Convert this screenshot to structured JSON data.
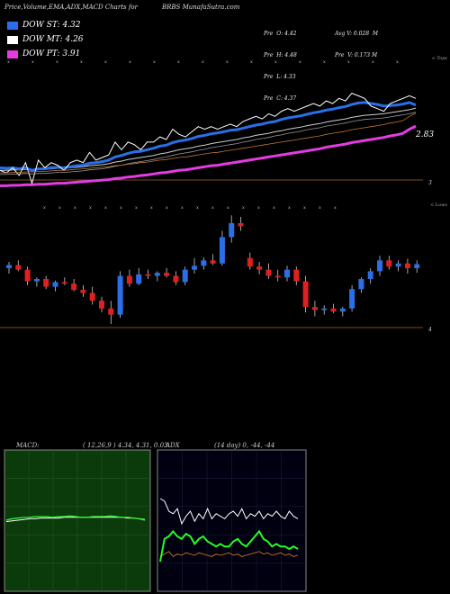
{
  "header": {
    "left_title": "Price,Volume,EMA,ADX,MACD Charts for",
    "symbol": "BRBS",
    "site": "MunafaSutra.com"
  },
  "legend": [
    {
      "label": "DOW ST: 4.32",
      "color": "#2a6fe8"
    },
    {
      "label": "DOW MT: 4.26",
      "color": "#ffffff"
    },
    {
      "label": "DOW PT: 3.91",
      "color": "#e33ce3"
    }
  ],
  "stats_left": [
    "Pre  O: 4.42",
    "Pre  H: 4.48",
    "Pre  L: 4.33",
    "Pre  C: 4.37"
  ],
  "stats_right": [
    "Avg V: 0.028  M",
    "Pre  V: 0.173 M"
  ],
  "price_panel": {
    "corner_label": "< Tops",
    "last_label": "2.83",
    "axis_label": "3"
  },
  "candle_panel": {
    "corner_label": "< Lows",
    "axis_label": "4"
  },
  "macd_panel": {
    "title": "MACD:",
    "params": "( 12,26,9 ) 4.34, 4.31, 0.03"
  },
  "adx_panel": {
    "title": "ADX",
    "params": "(14  day) 0, -44, -44"
  },
  "chart_data": [
    {
      "type": "line",
      "title": "Price with EMAs",
      "series": [
        {
          "name": "Close",
          "values": [
            3.05,
            3.0,
            3.1,
            2.95,
            3.2,
            2.8,
            3.25,
            3.1,
            3.2,
            3.15,
            3.05,
            3.2,
            3.25,
            3.2,
            3.4,
            3.25,
            3.3,
            3.35,
            3.6,
            3.45,
            3.6,
            3.55,
            3.45,
            3.6,
            3.6,
            3.7,
            3.65,
            3.85,
            3.75,
            3.7,
            3.8,
            3.9,
            3.85,
            3.9,
            3.85,
            3.9,
            3.95,
            3.9,
            4.0,
            4.05,
            4.1,
            4.05,
            4.15,
            4.1,
            4.2,
            4.25,
            4.2,
            4.25,
            4.3,
            4.35,
            4.3,
            4.4,
            4.35,
            4.45,
            4.4,
            4.55,
            4.5,
            4.45,
            4.3,
            4.25,
            4.2,
            4.35,
            4.4,
            4.45,
            4.5,
            4.45
          ]
        },
        {
          "name": "EMA ST",
          "values": [
            3.1,
            3.09,
            3.1,
            3.08,
            3.1,
            3.05,
            3.08,
            3.08,
            3.1,
            3.11,
            3.1,
            3.12,
            3.14,
            3.15,
            3.19,
            3.2,
            3.22,
            3.25,
            3.31,
            3.34,
            3.38,
            3.41,
            3.42,
            3.45,
            3.48,
            3.52,
            3.54,
            3.59,
            3.62,
            3.64,
            3.67,
            3.71,
            3.73,
            3.76,
            3.78,
            3.8,
            3.83,
            3.84,
            3.87,
            3.9,
            3.93,
            3.95,
            3.98,
            4.0,
            4.04,
            4.07,
            4.09,
            4.11,
            4.14,
            4.17,
            4.19,
            4.22,
            4.24,
            4.27,
            4.29,
            4.33,
            4.36,
            4.37,
            4.35,
            4.33,
            4.3,
            4.31,
            4.32,
            4.34,
            4.37,
            4.32
          ]
        },
        {
          "name": "EMA MT",
          "values": [
            3.05,
            3.05,
            3.06,
            3.06,
            3.07,
            3.06,
            3.07,
            3.07,
            3.08,
            3.09,
            3.09,
            3.1,
            3.11,
            3.12,
            3.14,
            3.15,
            3.16,
            3.18,
            3.21,
            3.23,
            3.26,
            3.28,
            3.3,
            3.32,
            3.34,
            3.37,
            3.39,
            3.42,
            3.45,
            3.47,
            3.49,
            3.52,
            3.54,
            3.57,
            3.59,
            3.61,
            3.63,
            3.65,
            3.68,
            3.7,
            3.73,
            3.75,
            3.77,
            3.8,
            3.82,
            3.85,
            3.87,
            3.89,
            3.92,
            3.94,
            3.96,
            3.99,
            4.01,
            4.03,
            4.05,
            4.08,
            4.1,
            4.12,
            4.13,
            4.14,
            4.15,
            4.17,
            4.19,
            4.21,
            4.23,
            4.26
          ]
        },
        {
          "name": "EMA PT",
          "values": [
            2.75,
            2.75,
            2.76,
            2.76,
            2.77,
            2.77,
            2.78,
            2.78,
            2.79,
            2.8,
            2.8,
            2.81,
            2.82,
            2.83,
            2.84,
            2.85,
            2.86,
            2.87,
            2.89,
            2.9,
            2.92,
            2.93,
            2.95,
            2.96,
            2.98,
            3.0,
            3.01,
            3.03,
            3.05,
            3.06,
            3.08,
            3.1,
            3.12,
            3.14,
            3.15,
            3.17,
            3.19,
            3.21,
            3.23,
            3.25,
            3.27,
            3.29,
            3.31,
            3.33,
            3.35,
            3.37,
            3.39,
            3.41,
            3.43,
            3.45,
            3.47,
            3.5,
            3.52,
            3.54,
            3.56,
            3.59,
            3.61,
            3.63,
            3.65,
            3.67,
            3.69,
            3.72,
            3.74,
            3.77,
            3.85,
            3.91
          ]
        }
      ]
    },
    {
      "type": "bar",
      "title": "Candles",
      "candles": [
        {
          "o": 4.32,
          "h": 4.4,
          "l": 4.25,
          "c": 4.36
        },
        {
          "o": 4.36,
          "h": 4.42,
          "l": 4.28,
          "c": 4.3
        },
        {
          "o": 4.3,
          "h": 4.34,
          "l": 4.1,
          "c": 4.15
        },
        {
          "o": 4.15,
          "h": 4.2,
          "l": 4.08,
          "c": 4.18
        },
        {
          "o": 4.18,
          "h": 4.22,
          "l": 4.05,
          "c": 4.08
        },
        {
          "o": 4.08,
          "h": 4.16,
          "l": 4.02,
          "c": 4.14
        },
        {
          "o": 4.14,
          "h": 4.2,
          "l": 4.1,
          "c": 4.12
        },
        {
          "o": 4.12,
          "h": 4.18,
          "l": 4.02,
          "c": 4.04
        },
        {
          "o": 4.04,
          "h": 4.1,
          "l": 3.95,
          "c": 4.0
        },
        {
          "o": 4.0,
          "h": 4.08,
          "l": 3.85,
          "c": 3.9
        },
        {
          "o": 3.9,
          "h": 3.95,
          "l": 3.75,
          "c": 3.8
        },
        {
          "o": 3.8,
          "h": 3.9,
          "l": 3.6,
          "c": 3.72
        },
        {
          "o": 3.72,
          "h": 4.28,
          "l": 3.68,
          "c": 4.22
        },
        {
          "o": 4.22,
          "h": 4.3,
          "l": 4.08,
          "c": 4.12
        },
        {
          "o": 4.12,
          "h": 4.32,
          "l": 4.1,
          "c": 4.24
        },
        {
          "o": 4.24,
          "h": 4.3,
          "l": 4.18,
          "c": 4.22
        },
        {
          "o": 4.22,
          "h": 4.28,
          "l": 4.15,
          "c": 4.26
        },
        {
          "o": 4.26,
          "h": 4.32,
          "l": 4.2,
          "c": 4.22
        },
        {
          "o": 4.22,
          "h": 4.28,
          "l": 4.1,
          "c": 4.14
        },
        {
          "o": 4.14,
          "h": 4.34,
          "l": 4.1,
          "c": 4.3
        },
        {
          "o": 4.3,
          "h": 4.45,
          "l": 4.25,
          "c": 4.35
        },
        {
          "o": 4.35,
          "h": 4.46,
          "l": 4.3,
          "c": 4.42
        },
        {
          "o": 4.42,
          "h": 4.5,
          "l": 4.36,
          "c": 4.38
        },
        {
          "o": 4.38,
          "h": 4.8,
          "l": 4.35,
          "c": 4.72
        },
        {
          "o": 4.72,
          "h": 5.0,
          "l": 4.65,
          "c": 4.9
        },
        {
          "o": 4.9,
          "h": 4.98,
          "l": 4.8,
          "c": 4.86
        },
        {
          "o": 4.45,
          "h": 4.52,
          "l": 4.3,
          "c": 4.34
        },
        {
          "o": 4.34,
          "h": 4.4,
          "l": 4.24,
          "c": 4.3
        },
        {
          "o": 4.3,
          "h": 4.38,
          "l": 4.18,
          "c": 4.22
        },
        {
          "o": 4.22,
          "h": 4.3,
          "l": 4.15,
          "c": 4.2
        },
        {
          "o": 4.2,
          "h": 4.35,
          "l": 4.15,
          "c": 4.3
        },
        {
          "o": 4.3,
          "h": 4.34,
          "l": 4.1,
          "c": 4.15
        },
        {
          "o": 4.15,
          "h": 4.22,
          "l": 3.75,
          "c": 3.82
        },
        {
          "o": 3.82,
          "h": 3.9,
          "l": 3.7,
          "c": 3.78
        },
        {
          "o": 3.78,
          "h": 3.84,
          "l": 3.72,
          "c": 3.8
        },
        {
          "o": 3.8,
          "h": 3.86,
          "l": 3.74,
          "c": 3.76
        },
        {
          "o": 3.76,
          "h": 3.82,
          "l": 3.7,
          "c": 3.8
        },
        {
          "o": 3.8,
          "h": 4.1,
          "l": 3.76,
          "c": 4.05
        },
        {
          "o": 4.05,
          "h": 4.2,
          "l": 4.0,
          "c": 4.18
        },
        {
          "o": 4.18,
          "h": 4.32,
          "l": 4.12,
          "c": 4.28
        },
        {
          "o": 4.28,
          "h": 4.48,
          "l": 4.22,
          "c": 4.42
        },
        {
          "o": 4.42,
          "h": 4.48,
          "l": 4.3,
          "c": 4.34
        },
        {
          "o": 4.34,
          "h": 4.42,
          "l": 4.28,
          "c": 4.38
        },
        {
          "o": 4.38,
          "h": 4.44,
          "l": 4.25,
          "c": 4.32
        },
        {
          "o": 4.32,
          "h": 4.42,
          "l": 4.26,
          "c": 4.37
        }
      ]
    },
    {
      "type": "line",
      "title": "MACD",
      "series": [
        {
          "name": "MACD",
          "values": [
            0.0,
            0.02,
            0.03,
            0.04,
            0.04,
            0.05,
            0.05,
            0.05,
            0.04,
            0.05,
            0.05,
            0.06,
            0.05,
            0.04,
            0.04,
            0.05,
            0.05,
            0.05,
            0.06,
            0.05,
            0.04,
            0.04,
            0.03,
            0.02,
            0.0
          ]
        },
        {
          "name": "Signal",
          "values": [
            -0.02,
            -0.01,
            0.0,
            0.01,
            0.02,
            0.02,
            0.03,
            0.03,
            0.03,
            0.03,
            0.04,
            0.04,
            0.04,
            0.04,
            0.04,
            0.04,
            0.04,
            0.04,
            0.04,
            0.04,
            0.04,
            0.03,
            0.03,
            0.02,
            0.01
          ]
        }
      ]
    },
    {
      "type": "line",
      "title": "ADX",
      "series": [
        {
          "name": "+DI",
          "values": [
            60,
            58,
            50,
            48,
            52,
            40,
            46,
            50,
            42,
            48,
            44,
            52,
            44,
            48,
            46,
            44,
            48,
            50,
            46,
            52,
            44,
            48,
            46,
            50,
            44,
            48,
            46,
            50,
            46,
            44,
            50,
            46,
            44
          ]
        },
        {
          "name": "-DI",
          "values": [
            10,
            28,
            30,
            34,
            30,
            28,
            32,
            30,
            24,
            28,
            30,
            26,
            24,
            22,
            24,
            22,
            22,
            26,
            28,
            24,
            22,
            26,
            30,
            34,
            28,
            26,
            22,
            24,
            22,
            22,
            20,
            22,
            20
          ]
        },
        {
          "name": "ADX",
          "values": [
            14,
            16,
            18,
            14,
            16,
            15,
            17,
            16,
            15,
            17,
            16,
            15,
            14,
            16,
            15,
            16,
            17,
            15,
            16,
            14,
            15,
            16,
            17,
            18,
            16,
            17,
            15,
            16,
            17,
            15,
            16,
            14,
            15
          ]
        }
      ]
    }
  ]
}
